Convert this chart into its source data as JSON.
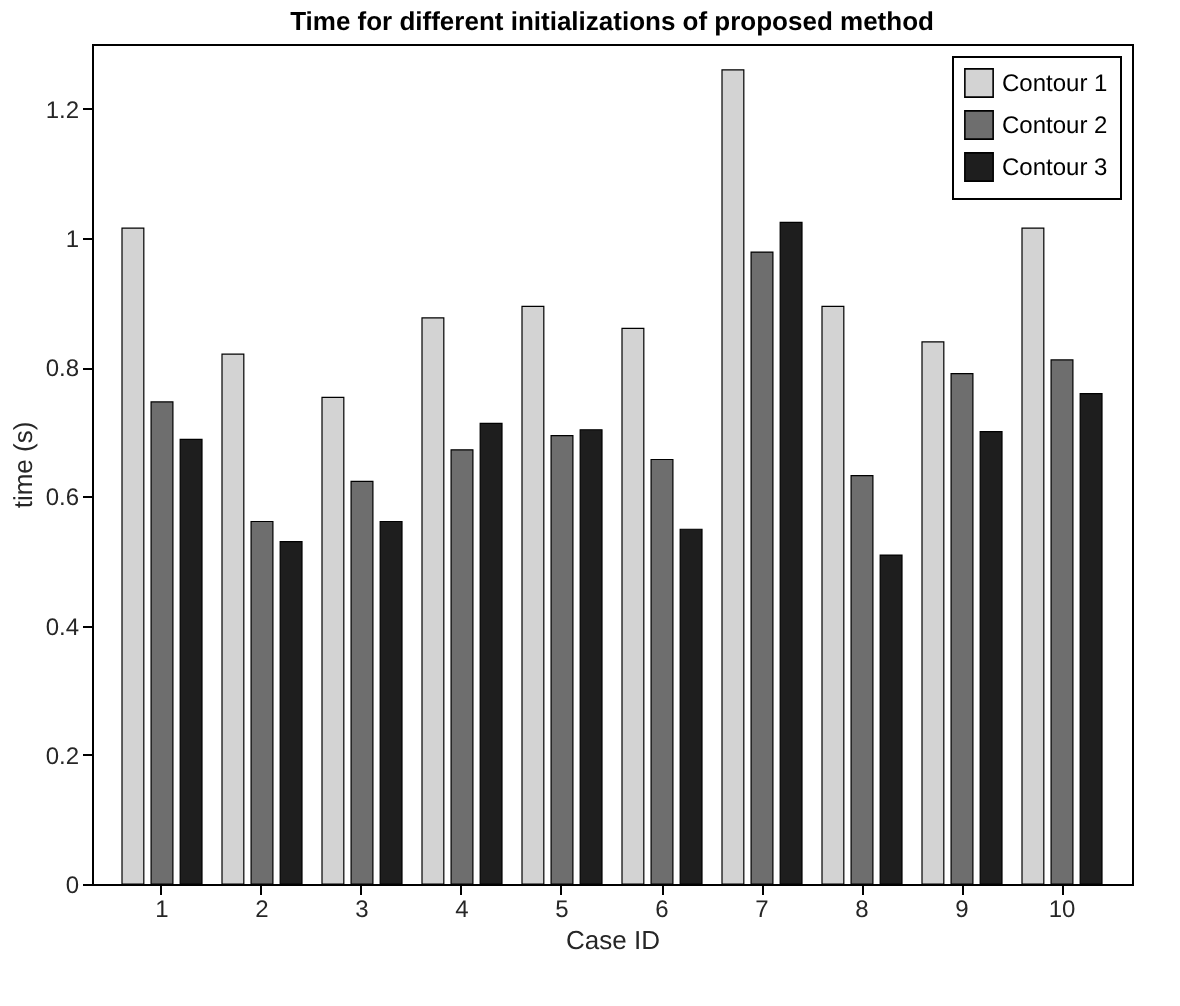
{
  "chart_data": {
    "type": "bar",
    "title": "Time for different initializations of proposed method",
    "xlabel": "Case ID",
    "ylabel": "time (s)",
    "categories": [
      "1",
      "2",
      "3",
      "4",
      "5",
      "6",
      "7",
      "8",
      "9",
      "10"
    ],
    "series": [
      {
        "name": "Contour 1",
        "color": "#d3d3d3",
        "values": [
          1.015,
          0.82,
          0.753,
          0.876,
          0.894,
          0.86,
          1.26,
          0.894,
          0.839,
          1.015
        ]
      },
      {
        "name": "Contour 2",
        "color": "#6e6e6e",
        "values": [
          0.746,
          0.561,
          0.623,
          0.672,
          0.694,
          0.657,
          0.978,
          0.632,
          0.79,
          0.811
        ]
      },
      {
        "name": "Contour 3",
        "color": "#1e1e1e",
        "values": [
          0.688,
          0.53,
          0.561,
          0.713,
          0.703,
          0.549,
          1.024,
          0.509,
          0.7,
          0.759
        ]
      }
    ],
    "ylim": [
      0,
      1.3
    ],
    "yticks": [
      0,
      0.2,
      0.4,
      0.6,
      0.8,
      1,
      1.2
    ],
    "grid": false,
    "legend": "top right"
  }
}
